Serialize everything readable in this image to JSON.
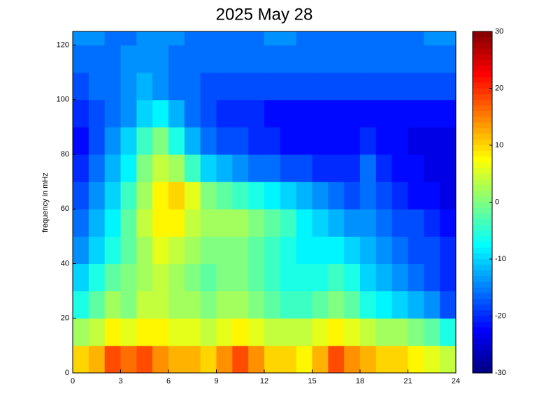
{
  "chart_data": {
    "type": "heatmap",
    "title": "2025 May 28",
    "y_label": "frequency in mHz",
    "colormap": "jet",
    "clim": [
      -30,
      30
    ],
    "cticks": [
      -30,
      -20,
      -10,
      0,
      10,
      20,
      30
    ],
    "xlim": [
      0,
      24
    ],
    "xticks": [
      0,
      3,
      6,
      9,
      12,
      15,
      18,
      21,
      24
    ],
    "ylim": [
      0,
      125
    ],
    "yticks": [
      0,
      20,
      40,
      60,
      80,
      100,
      120
    ],
    "x_edges": [
      0,
      1,
      2,
      3,
      4,
      5,
      6,
      7,
      8,
      9,
      10,
      11,
      12,
      13,
      14,
      15,
      16,
      17,
      18,
      19,
      20,
      21,
      22,
      23,
      24
    ],
    "y_edges": [
      0,
      10,
      20,
      30,
      40,
      50,
      60,
      70,
      80,
      90,
      100,
      110,
      120,
      125
    ],
    "z": [
      [
        10,
        12,
        18,
        16,
        18,
        14,
        12,
        12,
        10,
        14,
        18,
        14,
        10,
        10,
        8,
        12,
        18,
        14,
        12,
        10,
        10,
        8,
        6,
        4
      ],
      [
        2,
        4,
        8,
        6,
        8,
        8,
        6,
        6,
        4,
        6,
        8,
        6,
        4,
        4,
        4,
        6,
        8,
        6,
        4,
        2,
        2,
        0,
        -2,
        -6
      ],
      [
        -6,
        -2,
        2,
        0,
        4,
        4,
        2,
        2,
        0,
        2,
        2,
        0,
        -2,
        -4,
        -4,
        -2,
        0,
        -2,
        -6,
        -8,
        -10,
        -12,
        -14,
        -18
      ],
      [
        -10,
        -6,
        -2,
        0,
        2,
        4,
        2,
        0,
        -2,
        0,
        0,
        -2,
        -4,
        -6,
        -6,
        -6,
        -4,
        -6,
        -10,
        -12,
        -14,
        -16,
        -18,
        -20
      ],
      [
        -14,
        -10,
        -6,
        -2,
        2,
        6,
        4,
        2,
        0,
        0,
        0,
        -2,
        -4,
        -6,
        -8,
        -8,
        -8,
        -10,
        -12,
        -14,
        -16,
        -18,
        -18,
        -20
      ],
      [
        -16,
        -12,
        -8,
        -2,
        4,
        8,
        8,
        4,
        2,
        2,
        2,
        0,
        -2,
        -4,
        -8,
        -10,
        -12,
        -14,
        -14,
        -16,
        -18,
        -18,
        -20,
        -22
      ],
      [
        -18,
        -14,
        -10,
        -4,
        2,
        8,
        10,
        6,
        0,
        -2,
        -4,
        -6,
        -8,
        -10,
        -12,
        -14,
        -16,
        -18,
        -16,
        -18,
        -20,
        -22,
        -22,
        -24
      ],
      [
        -20,
        -16,
        -12,
        -8,
        0,
        4,
        2,
        -4,
        -10,
        -12,
        -14,
        -16,
        -16,
        -18,
        -18,
        -20,
        -20,
        -20,
        -16,
        -20,
        -22,
        -22,
        -24,
        -24
      ],
      [
        -22,
        -18,
        -14,
        -10,
        -4,
        0,
        -6,
        -12,
        -16,
        -18,
        -18,
        -20,
        -20,
        -22,
        -22,
        -22,
        -22,
        -22,
        -20,
        -22,
        -22,
        -24,
        -24,
        -24
      ],
      [
        -20,
        -18,
        -16,
        -14,
        -10,
        -8,
        -12,
        -16,
        -18,
        -20,
        -20,
        -20,
        -22,
        -22,
        -22,
        -22,
        -22,
        -22,
        -22,
        -22,
        -22,
        -22,
        -22,
        -22
      ],
      [
        -18,
        -16,
        -16,
        -14,
        -12,
        -14,
        -16,
        -16,
        -18,
        -18,
        -18,
        -18,
        -18,
        -18,
        -18,
        -18,
        -18,
        -18,
        -18,
        -18,
        -18,
        -18,
        -18,
        -18
      ],
      [
        -16,
        -16,
        -16,
        -14,
        -14,
        -14,
        -16,
        -16,
        -16,
        -16,
        -16,
        -16,
        -16,
        -16,
        -16,
        -16,
        -16,
        -16,
        -16,
        -16,
        -16,
        -16,
        -16,
        -16
      ],
      [
        -14,
        -14,
        -16,
        -16,
        -14,
        -14,
        -14,
        -16,
        -16,
        -16,
        -16,
        -16,
        -14,
        -14,
        -16,
        -16,
        -16,
        -16,
        -16,
        -16,
        -16,
        -16,
        -14,
        -14
      ]
    ]
  }
}
